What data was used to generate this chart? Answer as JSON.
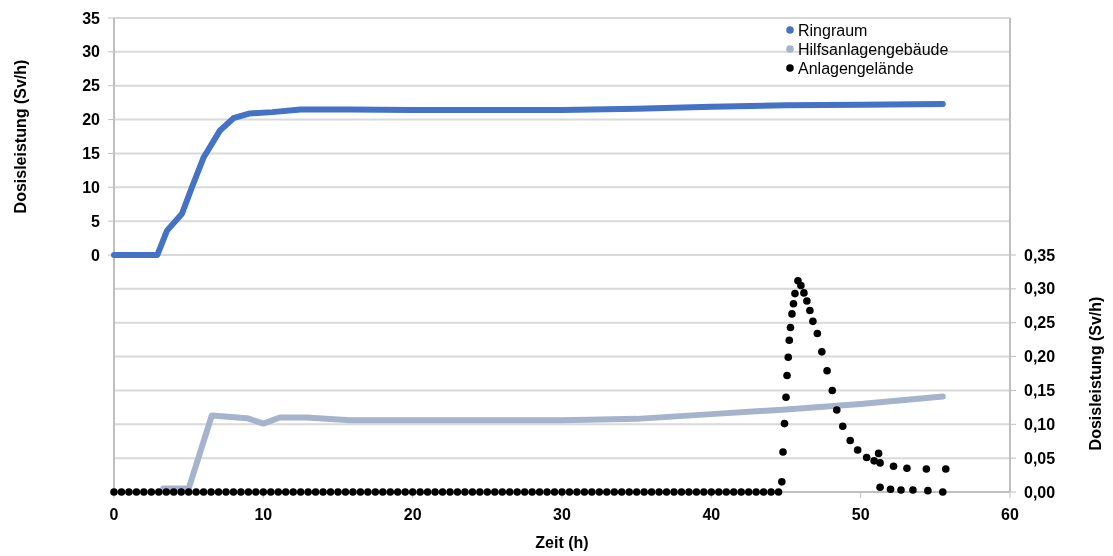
{
  "chart_data": {
    "type": "line",
    "xlabel": "Zeit  (h)",
    "ylabel": "Dosisleistung  (Sv/h)",
    "y2label": "Dosisleistung  (Sv/h)",
    "xlim": [
      0,
      60
    ],
    "xticks": [
      0,
      10,
      20,
      30,
      40,
      50,
      60
    ],
    "ylim": [
      -35,
      35
    ],
    "yticks": [
      0,
      5,
      10,
      15,
      20,
      25,
      30,
      35
    ],
    "y2lim": [
      0,
      0.7
    ],
    "y2ticks": [
      {
        "value": 0,
        "label": "0,00"
      },
      {
        "value": 0.05,
        "label": "0,05"
      },
      {
        "value": 0.1,
        "label": "0,10"
      },
      {
        "value": 0.15,
        "label": "0,15"
      },
      {
        "value": 0.2,
        "label": "0,20"
      },
      {
        "value": 0.25,
        "label": "0,25"
      },
      {
        "value": 0.3,
        "label": "0,30"
      },
      {
        "value": 0.35,
        "label": "0,35"
      }
    ],
    "grid": "y",
    "legend": "top right",
    "series": [
      {
        "name": "Ringraum",
        "color": "#4472c4",
        "x": [
          0,
          2.9,
          3.55,
          4.55,
          5.2,
          6.0,
          7.1,
          8.0,
          9.1,
          10.6,
          12.5,
          15.8,
          20,
          25,
          30,
          35,
          40,
          45,
          50,
          55.5
        ],
        "values": [
          0,
          0,
          3.6,
          6.1,
          9.9,
          14.4,
          18.4,
          20.2,
          20.9,
          21.1,
          21.5,
          21.5,
          21.4,
          21.4,
          21.4,
          21.6,
          21.9,
          22.1,
          22.2,
          22.3
        ]
      },
      {
        "name": "Hilfsanlagengebäude",
        "color": "#a5b4cc",
        "axis": "y2",
        "x": [
          3.3,
          5.0,
          6.55,
          8.9,
          10.0,
          11.1,
          12.9,
          15.8,
          20,
          25,
          30,
          35,
          40,
          45,
          50,
          55.5
        ],
        "values": [
          0.005,
          0.005,
          0.113,
          0.109,
          0.101,
          0.11,
          0.11,
          0.106,
          0.106,
          0.106,
          0.106,
          0.108,
          0.115,
          0.122,
          0.13,
          0.141
        ]
      },
      {
        "name": "Anlagengelände",
        "color": "#000000",
        "type": "scatter",
        "axis": "y2",
        "marker": "circle",
        "x": [
          0,
          0.5,
          1,
          1.5,
          2,
          2.5,
          3,
          3.5,
          4,
          4.5,
          5,
          5.5,
          6,
          6.5,
          7,
          7.5,
          8,
          8.5,
          9,
          9.5,
          10,
          10.5,
          11,
          11.5,
          12,
          12.5,
          13,
          13.5,
          14,
          14.5,
          15,
          15.5,
          16,
          16.5,
          17,
          17.5,
          18,
          18.5,
          19,
          19.5,
          20,
          20.5,
          21,
          21.5,
          22,
          22.5,
          23,
          23.5,
          24,
          24.5,
          25,
          25.5,
          26,
          26.5,
          27,
          27.5,
          28,
          28.5,
          29,
          29.5,
          30,
          30.5,
          31,
          31.5,
          32,
          32.5,
          33,
          33.5,
          34,
          34.5,
          35,
          35.5,
          36,
          36.5,
          37,
          37.5,
          38,
          38.5,
          39,
          39.5,
          40,
          40.5,
          41,
          41.5,
          42,
          42.5,
          43,
          43.5,
          44,
          44.5,
          44.72,
          44.8,
          44.9,
          45.0,
          45.07,
          45.15,
          45.22,
          45.3,
          45.4,
          45.5,
          45.6,
          45.8,
          46.0,
          46.2,
          46.4,
          46.6,
          46.8,
          47.1,
          47.4,
          47.75,
          48.1,
          48.4,
          48.8,
          49.3,
          49.8,
          50.4,
          50.9,
          51.2,
          51.3,
          52.2,
          53.1,
          54.4,
          55.7,
          51.3,
          52,
          52.7,
          53.5,
          54.5,
          55.5
        ],
        "values": [
          0,
          0,
          0,
          0,
          0,
          0,
          0,
          0,
          0,
          0,
          0,
          0,
          0,
          0,
          0,
          0,
          0,
          0,
          0,
          0,
          0,
          0,
          0,
          0,
          0,
          0,
          0,
          0,
          0,
          0,
          0,
          0,
          0,
          0,
          0,
          0,
          0,
          0,
          0,
          0,
          0,
          0,
          0,
          0,
          0,
          0,
          0,
          0,
          0,
          0,
          0,
          0,
          0,
          0,
          0,
          0,
          0,
          0,
          0,
          0,
          0,
          0,
          0,
          0,
          0,
          0,
          0,
          0,
          0,
          0,
          0,
          0,
          0,
          0,
          0,
          0,
          0,
          0,
          0,
          0,
          0,
          0,
          0,
          0,
          0,
          0,
          0,
          0,
          0,
          0,
          0.015,
          0.059,
          0.101,
          0.14,
          0.172,
          0.199,
          0.224,
          0.243,
          0.263,
          0.278,
          0.293,
          0.312,
          0.305,
          0.294,
          0.282,
          0.268,
          0.252,
          0.234,
          0.207,
          0.179,
          0.15,
          0.121,
          0.097,
          0.076,
          0.062,
          0.051,
          0.046,
          0.057,
          0.043,
          0.038,
          0.035,
          0.034,
          0.034,
          0.007,
          0.004,
          0.003,
          0.003,
          0.002,
          0
        ]
      }
    ]
  }
}
